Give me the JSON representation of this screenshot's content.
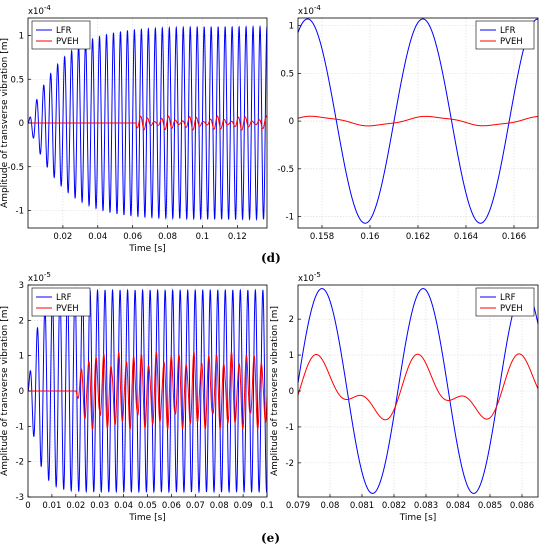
{
  "figure": {
    "row_labels": [
      "(d)",
      "(e)"
    ]
  },
  "chart_data": [
    {
      "id": "top-left",
      "type": "line",
      "exponent_label": "x10",
      "exponent": "-4",
      "xlabel": "Time [s]",
      "ylabel": "Amplitude of transverse vibration [m]",
      "xlim": [
        0,
        0.137
      ],
      "ylim": [
        -1.2,
        1.2
      ],
      "xticks": [
        0.02,
        0.04,
        0.06,
        0.08,
        0.1,
        0.12
      ],
      "xtick_labels": [
        "0.02",
        "0.04",
        "0.06",
        "0.08",
        "0.1",
        "0.12"
      ],
      "yticks": [
        -1,
        -0.5,
        0,
        0.5,
        1
      ],
      "ytick_labels": [
        "-1",
        "-0.5",
        "0",
        "0.5",
        "1"
      ],
      "grid": true,
      "legend": "top-left",
      "series": [
        {
          "name": "LFR",
          "color": "#0000ff",
          "kind": "growing",
          "freq": 250,
          "amp": 1.1,
          "tau": 0.018
        },
        {
          "name": "PVEH",
          "color": "#ff0000",
          "kind": "small",
          "freq": 250,
          "amp": 0.08,
          "onset": 0.062
        }
      ]
    },
    {
      "id": "top-right",
      "type": "line",
      "exponent_label": "x10",
      "exponent": "-4",
      "xlabel": "",
      "ylabel": "",
      "xlim": [
        0.157,
        0.167
      ],
      "ylim": [
        -1.12,
        1.08
      ],
      "xticks": [
        0.158,
        0.16,
        0.162,
        0.164,
        0.166
      ],
      "xtick_labels": [
        "0.158",
        "0.16",
        "0.162",
        "0.164",
        "0.166"
      ],
      "yticks": [
        -1,
        -0.5,
        0,
        0.5,
        1
      ],
      "ytick_labels": [
        "-1",
        "-0.5",
        "0",
        "0.5",
        "1"
      ],
      "grid": true,
      "legend": "top-right",
      "series": [
        {
          "name": "LFR",
          "color": "#0000ff",
          "kind": "sine",
          "freq": 208.3,
          "amp": 1.07,
          "phase_peak": 0.1574
        },
        {
          "name": "PVEH",
          "color": "#ff0000",
          "kind": "small-steady",
          "freq": 208.3,
          "amp": 0.06
        }
      ]
    },
    {
      "id": "bottom-left",
      "type": "line",
      "exponent_label": "x10",
      "exponent": "-5",
      "xlabel": "Time [s]",
      "ylabel": "Amplitude of transverse vibration [m]",
      "xlim": [
        0,
        0.1
      ],
      "ylim": [
        -3,
        3
      ],
      "xticks": [
        0,
        0.01,
        0.02,
        0.03,
        0.04,
        0.05,
        0.06,
        0.07,
        0.08,
        0.09,
        0.1
      ],
      "xtick_labels": [
        "0",
        "0.01",
        "0.02",
        "0.03",
        "0.04",
        "0.05",
        "0.06",
        "0.07",
        "0.08",
        "0.09",
        "0.1"
      ],
      "yticks": [
        -3,
        -2,
        -1,
        0,
        1,
        2,
        3
      ],
      "ytick_labels": [
        "-3",
        "-2",
        "-1",
        "0",
        "1",
        "2",
        "3"
      ],
      "grid": true,
      "legend": "top-left",
      "series": [
        {
          "name": "LRF",
          "color": "#0000ff",
          "kind": "growing",
          "freq": 318,
          "amp": 2.85,
          "tau": 0.004
        },
        {
          "name": "PVEH",
          "color": "#ff0000",
          "kind": "beat",
          "freq": 318,
          "amp": 1.1,
          "onset": 0.02
        }
      ]
    },
    {
      "id": "bottom-right",
      "type": "line",
      "exponent_label": "x10",
      "exponent": "-5",
      "xlabel": "Time [s]",
      "ylabel": "Amplitude of transverse vibration [m]",
      "xlim": [
        0.079,
        0.0865
      ],
      "ylim": [
        -2.95,
        2.95
      ],
      "xticks": [
        0.079,
        0.08,
        0.081,
        0.082,
        0.083,
        0.084,
        0.085,
        0.086
      ],
      "xtick_labels": [
        "0.079",
        "0.08",
        "0.081",
        "0.082",
        "0.083",
        "0.084",
        "0.085",
        "0.086"
      ],
      "yticks": [
        -2,
        -1,
        0,
        1,
        2
      ],
      "ytick_labels": [
        "-2",
        "-1",
        "0",
        "1",
        "2"
      ],
      "grid": true,
      "legend": "top-right",
      "series": [
        {
          "name": "LRF",
          "color": "#0000ff",
          "kind": "sine",
          "freq": 316.5,
          "amp": 2.85,
          "phase_peak": 0.07975
        },
        {
          "name": "PVEH",
          "color": "#ff0000",
          "kind": "beat-zoom",
          "freq": 316.5,
          "amp": 1.0
        }
      ]
    }
  ]
}
